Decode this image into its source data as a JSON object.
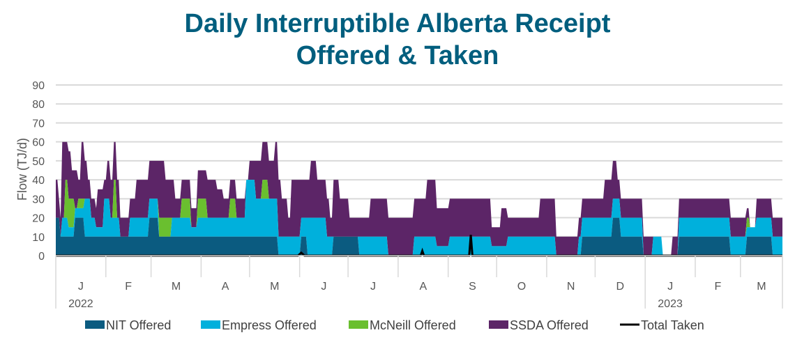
{
  "chart_data": {
    "type": "area",
    "title_lines": [
      "Daily Interruptible Alberta Receipt",
      "Offered & Taken"
    ],
    "ylabel": "Flow (TJ/d)",
    "xlabel": "",
    "ylim": [
      0,
      90
    ],
    "yticks": [
      0,
      10,
      20,
      30,
      40,
      50,
      60,
      70,
      80,
      90
    ],
    "grid": true,
    "legend_position": "bottom",
    "x_months": [
      "J",
      "F",
      "M",
      "A",
      "M",
      "J",
      "J",
      "A",
      "S",
      "O",
      "N",
      "D",
      "J",
      "F",
      "M"
    ],
    "x_years": [
      {
        "label": "2022",
        "month_index": 0
      },
      {
        "label": "2023",
        "month_index": 12
      }
    ],
    "stacked": true,
    "series": [
      {
        "name": "NIT Offered",
        "color": "#0b5b80",
        "points": [
          [
            0,
            20
          ],
          [
            3,
            10
          ],
          [
            8,
            10
          ],
          [
            12,
            20
          ],
          [
            18,
            10
          ],
          [
            25,
            10
          ],
          [
            32,
            10
          ],
          [
            40,
            10
          ],
          [
            52,
            10
          ],
          [
            58,
            20
          ],
          [
            64,
            10
          ],
          [
            72,
            10
          ],
          [
            84,
            10
          ],
          [
            94,
            10
          ],
          [
            100,
            10
          ],
          [
            115,
            10
          ],
          [
            138,
            0
          ],
          [
            150,
            0
          ],
          [
            152,
            10
          ],
          [
            156,
            0
          ],
          [
            170,
            0
          ],
          [
            172,
            10
          ],
          [
            182,
            10
          ],
          [
            188,
            0
          ],
          [
            245,
            0
          ],
          [
            252,
            0
          ],
          [
            270,
            0
          ],
          [
            300,
            0
          ],
          [
            310,
            0
          ],
          [
            320,
            0
          ],
          [
            326,
            10
          ],
          [
            340,
            10
          ],
          [
            345,
            20
          ],
          [
            348,
            20
          ],
          [
            350,
            10
          ],
          [
            360,
            10
          ],
          [
            364,
            0
          ],
          [
            382,
            0
          ],
          [
            386,
            10
          ],
          [
            400,
            10
          ],
          [
            405,
            10
          ],
          [
            418,
            0
          ],
          [
            424,
            0
          ],
          [
            428,
            10
          ],
          [
            434,
            10
          ],
          [
            444,
            0
          ],
          [
            450,
            0
          ]
        ]
      },
      {
        "name": "Empress Offered",
        "color": "#00b0dc",
        "points": [
          [
            0,
            0
          ],
          [
            4,
            10
          ],
          [
            8,
            5
          ],
          [
            12,
            5
          ],
          [
            18,
            20
          ],
          [
            22,
            10
          ],
          [
            25,
            5
          ],
          [
            30,
            20
          ],
          [
            34,
            10
          ],
          [
            40,
            0
          ],
          [
            46,
            10
          ],
          [
            52,
            10
          ],
          [
            58,
            10
          ],
          [
            64,
            0
          ],
          [
            72,
            10
          ],
          [
            78,
            10
          ],
          [
            84,
            5
          ],
          [
            88,
            10
          ],
          [
            94,
            10
          ],
          [
            98,
            10
          ],
          [
            105,
            10
          ],
          [
            115,
            10
          ],
          [
            118,
            30
          ],
          [
            120,
            30
          ],
          [
            124,
            20
          ],
          [
            132,
            20
          ],
          [
            138,
            10
          ],
          [
            148,
            10
          ],
          [
            152,
            10
          ],
          [
            156,
            20
          ],
          [
            162,
            20
          ],
          [
            168,
            10
          ],
          [
            172,
            0
          ],
          [
            176,
            0
          ],
          [
            182,
            0
          ],
          [
            188,
            10
          ],
          [
            195,
            10
          ],
          [
            200,
            10
          ],
          [
            206,
            0
          ],
          [
            212,
            0
          ],
          [
            222,
            10
          ],
          [
            230,
            10
          ],
          [
            236,
            5
          ],
          [
            244,
            10
          ],
          [
            252,
            10
          ],
          [
            260,
            10
          ],
          [
            266,
            10
          ],
          [
            270,
            5
          ],
          [
            280,
            10
          ],
          [
            300,
            10
          ],
          [
            310,
            0
          ],
          [
            320,
            0
          ],
          [
            324,
            10
          ],
          [
            330,
            10
          ],
          [
            336,
            10
          ],
          [
            340,
            10
          ],
          [
            345,
            10
          ],
          [
            348,
            10
          ],
          [
            350,
            10
          ],
          [
            355,
            10
          ],
          [
            360,
            10
          ],
          [
            364,
            0
          ],
          [
            370,
            10
          ],
          [
            376,
            0
          ],
          [
            386,
            10
          ],
          [
            400,
            10
          ],
          [
            420,
            10
          ],
          [
            424,
            10
          ],
          [
            428,
            5
          ],
          [
            434,
            10
          ],
          [
            438,
            10
          ],
          [
            444,
            10
          ],
          [
            450,
            10
          ]
        ]
      },
      {
        "name": "McNeill Offered",
        "color": "#6abf2f",
        "points": [
          [
            0,
            0
          ],
          [
            6,
            20
          ],
          [
            8,
            15
          ],
          [
            12,
            0
          ],
          [
            14,
            5
          ],
          [
            18,
            0
          ],
          [
            26,
            0
          ],
          [
            34,
            0
          ],
          [
            36,
            20
          ],
          [
            38,
            0
          ],
          [
            58,
            0
          ],
          [
            64,
            10
          ],
          [
            72,
            0
          ],
          [
            78,
            10
          ],
          [
            84,
            0
          ],
          [
            88,
            10
          ],
          [
            94,
            0
          ],
          [
            104,
            0
          ],
          [
            108,
            10
          ],
          [
            112,
            0
          ],
          [
            124,
            0
          ],
          [
            128,
            10
          ],
          [
            132,
            0
          ],
          [
            150,
            0
          ],
          [
            424,
            0
          ],
          [
            428,
            5
          ],
          [
            430,
            0
          ],
          [
            450,
            0
          ]
        ]
      },
      {
        "name": "SSDA Offered",
        "color": "#5c2567",
        "points": [
          [
            0,
            20
          ],
          [
            2,
            10
          ],
          [
            4,
            40
          ],
          [
            6,
            20
          ],
          [
            8,
            25
          ],
          [
            10,
            15
          ],
          [
            12,
            20
          ],
          [
            14,
            10
          ],
          [
            16,
            30
          ],
          [
            18,
            20
          ],
          [
            20,
            10
          ],
          [
            24,
            10
          ],
          [
            26,
            20
          ],
          [
            28,
            20
          ],
          [
            30,
            10
          ],
          [
            32,
            20
          ],
          [
            34,
            20
          ],
          [
            38,
            20
          ],
          [
            40,
            10
          ],
          [
            46,
            10
          ],
          [
            50,
            20
          ],
          [
            55,
            20
          ],
          [
            58,
            20
          ],
          [
            64,
            30
          ],
          [
            68,
            20
          ],
          [
            74,
            10
          ],
          [
            80,
            10
          ],
          [
            84,
            10
          ],
          [
            88,
            15
          ],
          [
            94,
            20
          ],
          [
            100,
            15
          ],
          [
            104,
            10
          ],
          [
            108,
            10
          ],
          [
            112,
            10
          ],
          [
            116,
            10
          ],
          [
            118,
            0
          ],
          [
            120,
            10
          ],
          [
            124,
            20
          ],
          [
            128,
            20
          ],
          [
            132,
            20
          ],
          [
            136,
            30
          ],
          [
            140,
            20
          ],
          [
            144,
            10
          ],
          [
            146,
            30
          ],
          [
            152,
            20
          ],
          [
            158,
            30
          ],
          [
            162,
            20
          ],
          [
            166,
            20
          ],
          [
            170,
            10
          ],
          [
            172,
            30
          ],
          [
            176,
            20
          ],
          [
            182,
            10
          ],
          [
            188,
            10
          ],
          [
            195,
            20
          ],
          [
            200,
            20
          ],
          [
            206,
            20
          ],
          [
            212,
            20
          ],
          [
            218,
            20
          ],
          [
            222,
            20
          ],
          [
            226,
            20
          ],
          [
            230,
            30
          ],
          [
            236,
            20
          ],
          [
            240,
            20
          ],
          [
            244,
            20
          ],
          [
            248,
            20
          ],
          [
            252,
            20
          ],
          [
            258,
            20
          ],
          [
            262,
            20
          ],
          [
            266,
            20
          ],
          [
            270,
            10
          ],
          [
            276,
            20
          ],
          [
            280,
            10
          ],
          [
            290,
            10
          ],
          [
            300,
            20
          ],
          [
            310,
            10
          ],
          [
            316,
            10
          ],
          [
            320,
            10
          ],
          [
            324,
            10
          ],
          [
            330,
            10
          ],
          [
            336,
            10
          ],
          [
            340,
            20
          ],
          [
            345,
            20
          ],
          [
            348,
            10
          ],
          [
            350,
            10
          ],
          [
            355,
            10
          ],
          [
            360,
            10
          ],
          [
            364,
            10
          ],
          [
            370,
            0
          ],
          [
            376,
            0
          ],
          [
            382,
            10
          ],
          [
            386,
            10
          ],
          [
            400,
            10
          ],
          [
            410,
            10
          ],
          [
            418,
            10
          ],
          [
            424,
            10
          ],
          [
            428,
            5
          ],
          [
            430,
            0
          ],
          [
            432,
            0
          ],
          [
            434,
            10
          ],
          [
            438,
            10
          ],
          [
            444,
            10
          ],
          [
            450,
            10
          ]
        ]
      },
      {
        "name": "Total Taken",
        "color": "#000000",
        "style": "line",
        "points": [
          [
            0,
            0
          ],
          [
            150,
            0
          ],
          [
            152,
            1.5
          ],
          [
            154,
            0
          ],
          [
            226,
            0
          ],
          [
            227,
            2.5
          ],
          [
            228,
            0
          ],
          [
            256,
            0
          ],
          [
            257,
            11
          ],
          [
            258,
            0
          ],
          [
            450,
            0
          ]
        ]
      }
    ]
  }
}
